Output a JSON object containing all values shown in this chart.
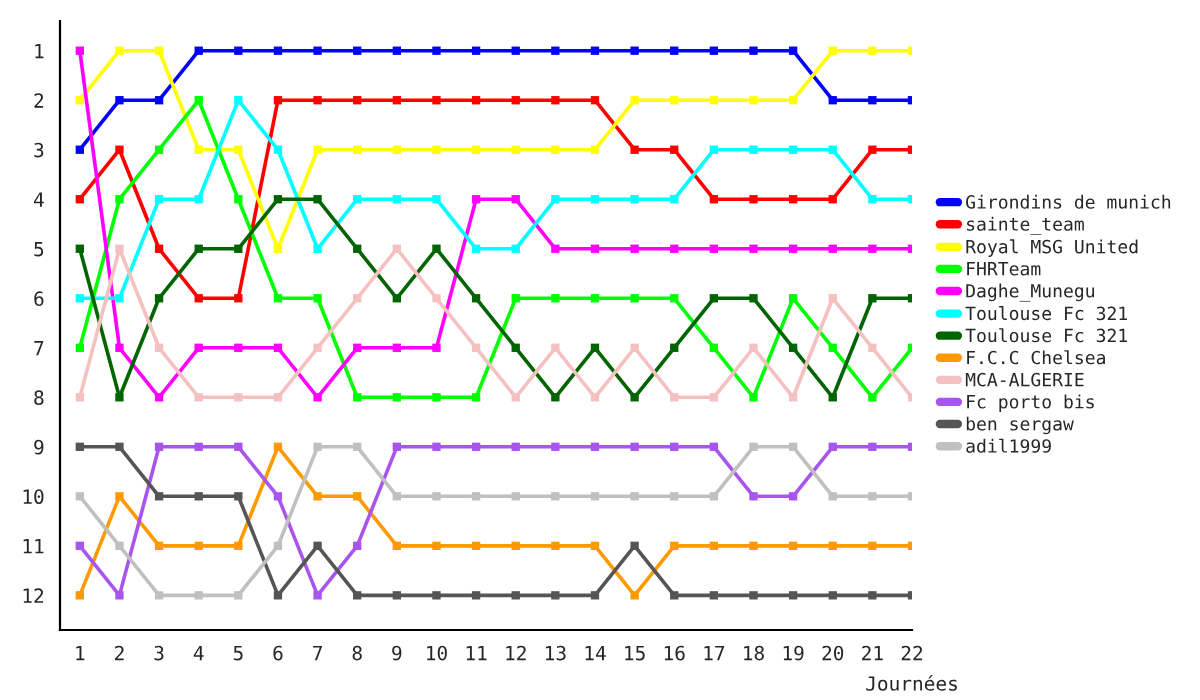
{
  "chart_data": {
    "type": "line",
    "xlabel": "Journées",
    "x": [
      1,
      2,
      3,
      4,
      5,
      6,
      7,
      8,
      9,
      10,
      11,
      12,
      13,
      14,
      15,
      16,
      17,
      18,
      19,
      20,
      21,
      22
    ],
    "xlim": [
      0.5,
      22
    ],
    "xticks": [
      1,
      2,
      3,
      4,
      5,
      6,
      7,
      8,
      9,
      10,
      11,
      12,
      13,
      14,
      15,
      16,
      17,
      18,
      19,
      20,
      21,
      22
    ],
    "ylim": [
      12.7,
      0.4
    ],
    "yticks": [
      1,
      2,
      3,
      4,
      5,
      6,
      7,
      8,
      9,
      10,
      11,
      12
    ],
    "grid": false,
    "legend": "right",
    "marker": "square",
    "line_style": "solid",
    "series": [
      {
        "name": "Girondins de munich",
        "color": "#0000ff",
        "values": [
          3,
          2,
          2,
          1,
          1,
          1,
          1,
          1,
          1,
          1,
          1,
          1,
          1,
          1,
          1,
          1,
          1,
          1,
          1,
          2,
          2,
          2
        ]
      },
      {
        "name": "sainte_team",
        "color": "#ff0000",
        "values": [
          4,
          3,
          5,
          6,
          6,
          2,
          2,
          2,
          2,
          2,
          2,
          2,
          2,
          2,
          3,
          3,
          4,
          4,
          4,
          4,
          3,
          3
        ]
      },
      {
        "name": "Royal MSG United",
        "color": "#ffff00",
        "values": [
          2,
          1,
          1,
          3,
          3,
          5,
          3,
          3,
          3,
          3,
          3,
          3,
          3,
          3,
          2,
          2,
          2,
          2,
          2,
          1,
          1,
          1
        ]
      },
      {
        "name": "FHRTeam",
        "color": "#00ff00",
        "values": [
          7,
          4,
          3,
          2,
          4,
          6,
          6,
          8,
          8,
          8,
          8,
          6,
          6,
          6,
          6,
          6,
          7,
          8,
          6,
          7,
          8,
          7
        ]
      },
      {
        "name": "Daghe_Munegu",
        "color": "#ff00ff",
        "values": [
          1,
          7,
          8,
          7,
          7,
          7,
          8,
          7,
          7,
          7,
          4,
          4,
          5,
          5,
          5,
          5,
          5,
          5,
          5,
          5,
          5,
          5
        ]
      },
      {
        "name": "Toulouse Fc 321",
        "color": "#00ffff",
        "values": [
          6,
          6,
          4,
          4,
          2,
          3,
          5,
          4,
          4,
          4,
          5,
          5,
          4,
          4,
          4,
          4,
          3,
          3,
          3,
          3,
          4,
          4
        ]
      },
      {
        "name": "Toulouse Fc 321",
        "color": "#006400",
        "values": [
          5,
          8,
          6,
          5,
          5,
          4,
          4,
          5,
          6,
          5,
          6,
          7,
          8,
          7,
          8,
          7,
          6,
          6,
          7,
          8,
          6,
          6
        ]
      },
      {
        "name": "F.C.C Chelsea",
        "color": "#ff9900",
        "values": [
          12,
          10,
          11,
          11,
          11,
          9,
          10,
          10,
          11,
          11,
          11,
          11,
          11,
          11,
          12,
          11,
          11,
          11,
          11,
          11,
          11,
          11
        ]
      },
      {
        "name": "MCA-ALGERIE",
        "color": "#f5c0c0",
        "values": [
          8,
          5,
          7,
          8,
          8,
          8,
          7,
          6,
          5,
          6,
          7,
          8,
          7,
          8,
          7,
          8,
          8,
          7,
          8,
          6,
          7,
          8
        ]
      },
      {
        "name": "Fc porto bis",
        "color": "#a855f0",
        "values": [
          11,
          12,
          9,
          9,
          9,
          10,
          12,
          11,
          9,
          9,
          9,
          9,
          9,
          9,
          9,
          9,
          9,
          10,
          10,
          9,
          9,
          9
        ]
      },
      {
        "name": "ben sergaw",
        "color": "#555555",
        "values": [
          9,
          9,
          10,
          10,
          10,
          12,
          11,
          12,
          12,
          12,
          12,
          12,
          12,
          12,
          11,
          12,
          12,
          12,
          12,
          12,
          12,
          12
        ]
      },
      {
        "name": "adil1999",
        "color": "#c0c0c0",
        "values": [
          10,
          11,
          12,
          12,
          12,
          11,
          9,
          9,
          10,
          10,
          10,
          10,
          10,
          10,
          10,
          10,
          10,
          9,
          9,
          10,
          10,
          10
        ]
      }
    ]
  }
}
